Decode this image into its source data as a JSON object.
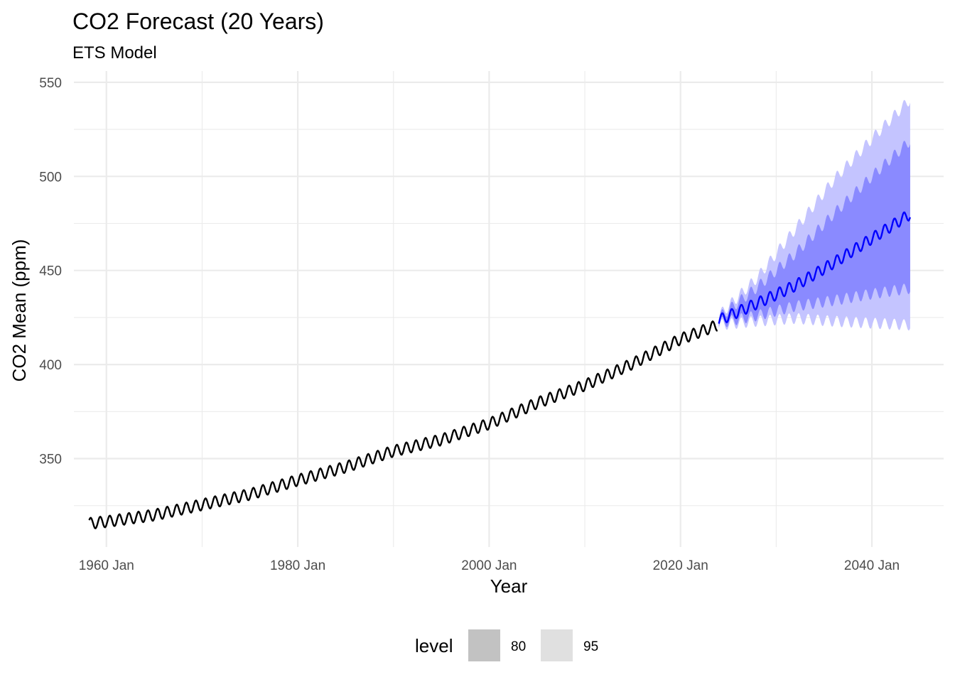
{
  "chart_data": {
    "type": "line",
    "title": "CO2 Forecast (20 Years)",
    "subtitle": "ETS Model",
    "xlabel": "Year",
    "ylabel": "CO2 Mean (ppm)",
    "x_ticks": [
      "1960 Jan",
      "1980 Jan",
      "2000 Jan",
      "2020 Jan",
      "2040 Jan"
    ],
    "x_tick_years": [
      1960,
      1980,
      2000,
      2020,
      2040
    ],
    "y_ticks": [
      350,
      400,
      450,
      500,
      550
    ],
    "xlim": [
      1956.6,
      2047.5
    ],
    "ylim": [
      303,
      556
    ],
    "grid": true,
    "legend": {
      "title": "level",
      "placement": "bottom",
      "entries": [
        {
          "label": "80",
          "swatch": "#c2c2c2"
        },
        {
          "label": "95",
          "swatch": "#e0e0e0"
        }
      ]
    },
    "colors": {
      "observed": "#000000",
      "forecast": "#0000ff",
      "band80": "#8a8aff",
      "band95": "#c4c4ff"
    },
    "series": [
      {
        "type": "line",
        "role": "observed",
        "seasonal_amplitude_ppm": 3,
        "x": [
          1958.2,
          1960,
          1965,
          1970,
          1975,
          1980,
          1985,
          1990,
          1995,
          2000,
          2005,
          2010,
          2015,
          2020,
          2023.9
        ],
        "values": [
          315.5,
          316.5,
          320,
          325.5,
          331,
          338.5,
          345.5,
          354,
          360,
          368.5,
          379.5,
          389,
          400.5,
          413.5,
          421
        ]
      },
      {
        "type": "line",
        "role": "forecast",
        "seasonal_amplitude_ppm": 3,
        "x": [
          2024,
          2028,
          2032,
          2036,
          2040,
          2044
        ],
        "values": [
          423.5,
          432.5,
          442,
          454,
          467,
          480
        ]
      },
      {
        "type": "area",
        "role": "interval",
        "level": "80",
        "x": [
          2024,
          2028,
          2032,
          2036,
          2040,
          2044
        ],
        "lower": [
          422,
          426,
          431,
          434,
          437.5,
          440.5
        ],
        "upper": [
          425,
          441,
          459,
          480,
          500,
          519
        ]
      },
      {
        "type": "area",
        "role": "interval",
        "level": "95",
        "x": [
          2024,
          2028,
          2032,
          2036,
          2040,
          2044
        ],
        "lower": [
          421,
          423,
          424.5,
          423,
          422,
          421
        ],
        "upper": [
          426,
          446,
          472,
          498,
          520,
          541
        ]
      }
    ]
  }
}
